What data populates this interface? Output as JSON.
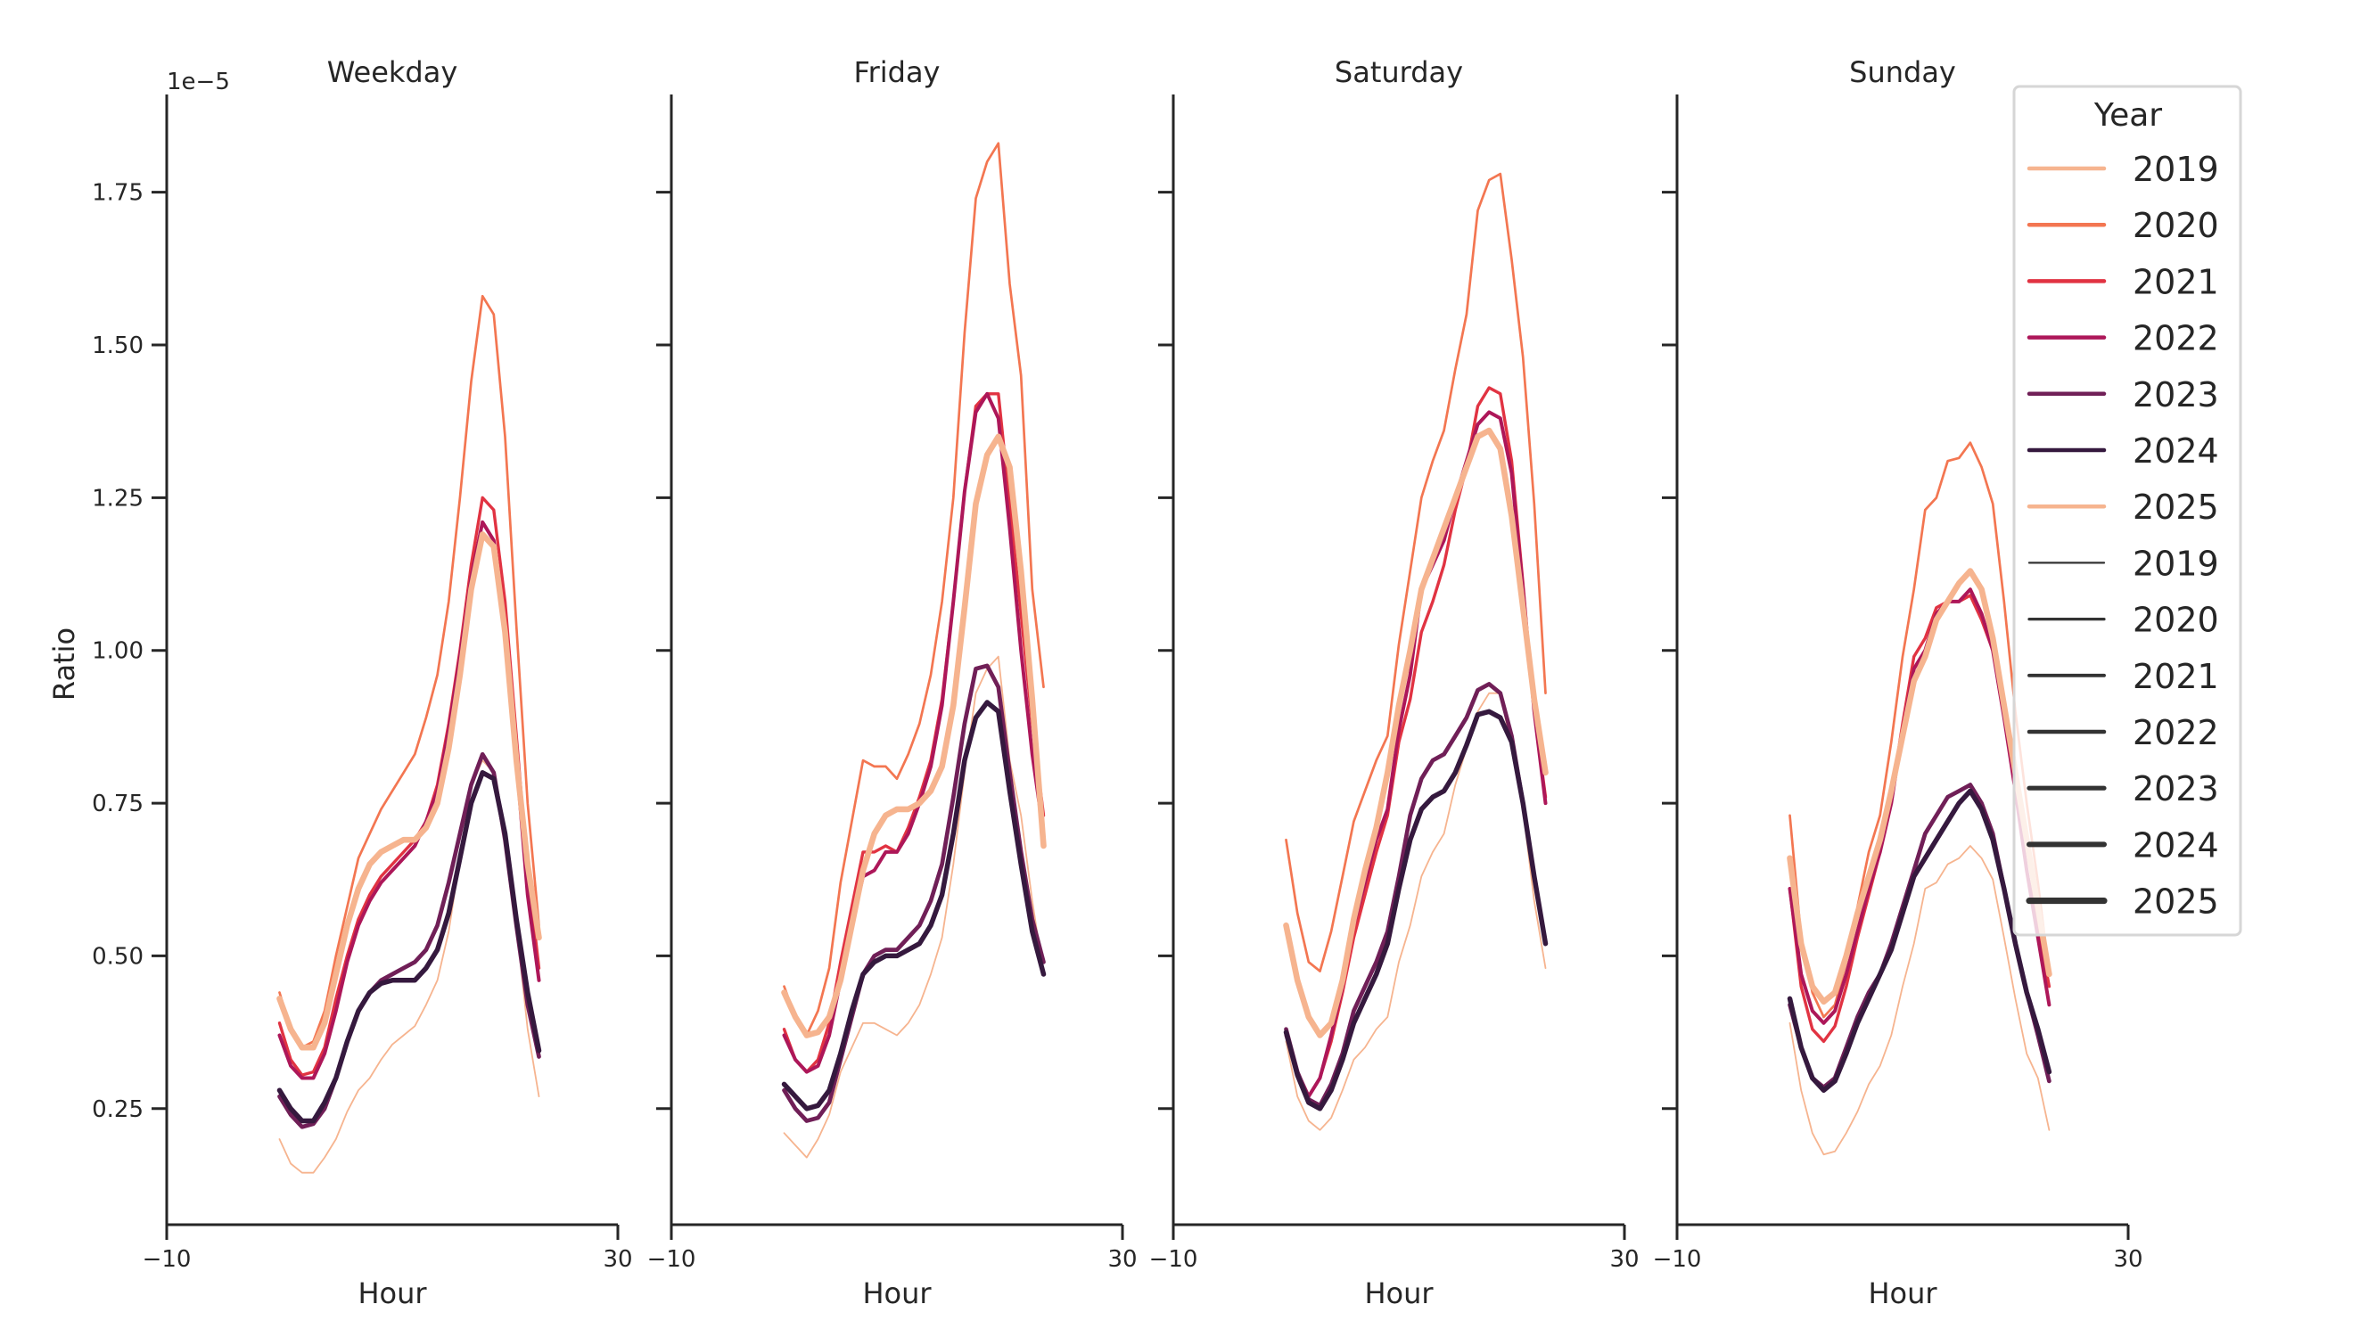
{
  "chart_data": {
    "type": "line",
    "offset_label": "1e−5",
    "ylabel": "Ratio",
    "xlabel": "Hour",
    "xlim": [
      -10,
      30
    ],
    "ylim": [
      0.06,
      1.91
    ],
    "x_ticks": [
      "−10",
      "30"
    ],
    "x_tick_values": [
      -10,
      30
    ],
    "y_ticks": [
      "0.25",
      "0.50",
      "0.75",
      "1.00",
      "1.25",
      "1.50",
      "1.75"
    ],
    "y_tick_values": [
      0.25,
      0.5,
      0.75,
      1.0,
      1.25,
      1.5,
      1.75
    ],
    "grid": false,
    "x": [
      0,
      1,
      2,
      3,
      4,
      5,
      6,
      7,
      8,
      9,
      10,
      11,
      12,
      13,
      14,
      15,
      16,
      17,
      18,
      19,
      20,
      21,
      22,
      23
    ],
    "legend": {
      "title": "Year",
      "placement": "top-right",
      "hue_entries": [
        "2019",
        "2020",
        "2021",
        "2022",
        "2023",
        "2024",
        "2025"
      ],
      "size_entries": [
        "2019",
        "2020",
        "2021",
        "2022",
        "2023",
        "2024",
        "2025"
      ]
    },
    "colors": {
      "2019": "#f6b48f",
      "2020": "#f37651",
      "2021": "#e13342",
      "2022": "#ad1759",
      "2023": "#701f57",
      "2024": "#35193e",
      "2025": "#f6b48f"
    },
    "panels": [
      {
        "title": "Weekday",
        "series": [
          {
            "name": "2019",
            "values": [
              0.2,
              0.16,
              0.145,
              0.145,
              0.17,
              0.2,
              0.245,
              0.28,
              0.3,
              0.33,
              0.355,
              0.37,
              0.385,
              0.42,
              0.46,
              0.54,
              0.66,
              0.78,
              0.82,
              0.8,
              0.7,
              0.55,
              0.38,
              0.27
            ]
          },
          {
            "name": "2020",
            "values": [
              0.44,
              0.38,
              0.35,
              0.36,
              0.41,
              0.5,
              0.58,
              0.66,
              0.7,
              0.74,
              0.77,
              0.8,
              0.83,
              0.89,
              0.96,
              1.08,
              1.25,
              1.44,
              1.58,
              1.55,
              1.35,
              1.04,
              0.75,
              0.55
            ]
          },
          {
            "name": "2021",
            "values": [
              0.39,
              0.33,
              0.305,
              0.31,
              0.35,
              0.43,
              0.5,
              0.56,
              0.6,
              0.63,
              0.65,
              0.67,
              0.69,
              0.72,
              0.78,
              0.88,
              1.0,
              1.14,
              1.25,
              1.23,
              1.08,
              0.86,
              0.64,
              0.48
            ]
          },
          {
            "name": "2022",
            "values": [
              0.37,
              0.32,
              0.3,
              0.3,
              0.34,
              0.41,
              0.49,
              0.55,
              0.59,
              0.62,
              0.64,
              0.66,
              0.68,
              0.72,
              0.77,
              0.87,
              0.99,
              1.12,
              1.21,
              1.18,
              1.04,
              0.82,
              0.6,
              0.46
            ]
          },
          {
            "name": "2023",
            "values": [
              0.27,
              0.24,
              0.22,
              0.225,
              0.25,
              0.3,
              0.36,
              0.41,
              0.44,
              0.46,
              0.47,
              0.48,
              0.49,
              0.51,
              0.55,
              0.62,
              0.7,
              0.78,
              0.83,
              0.8,
              0.69,
              0.55,
              0.42,
              0.335
            ]
          },
          {
            "name": "2024",
            "values": [
              0.28,
              0.25,
              0.23,
              0.23,
              0.26,
              0.3,
              0.36,
              0.41,
              0.44,
              0.455,
              0.46,
              0.46,
              0.46,
              0.48,
              0.51,
              0.57,
              0.66,
              0.75,
              0.8,
              0.79,
              0.7,
              0.56,
              0.44,
              0.345
            ]
          },
          {
            "name": "2025",
            "values": [
              0.43,
              0.38,
              0.35,
              0.35,
              0.39,
              0.47,
              0.55,
              0.61,
              0.65,
              0.67,
              0.68,
              0.69,
              0.69,
              0.71,
              0.75,
              0.84,
              0.96,
              1.1,
              1.19,
              1.17,
              1.03,
              0.82,
              0.65,
              0.53
            ]
          }
        ]
      },
      {
        "title": "Friday",
        "series": [
          {
            "name": "2019",
            "values": [
              0.21,
              0.19,
              0.17,
              0.2,
              0.24,
              0.31,
              0.35,
              0.39,
              0.39,
              0.38,
              0.37,
              0.39,
              0.42,
              0.47,
              0.53,
              0.65,
              0.8,
              0.93,
              0.97,
              0.99,
              0.82,
              0.73,
              0.59,
              0.47
            ]
          },
          {
            "name": "2020",
            "values": [
              0.45,
              0.4,
              0.37,
              0.41,
              0.48,
              0.62,
              0.72,
              0.82,
              0.81,
              0.81,
              0.79,
              0.83,
              0.88,
              0.96,
              1.08,
              1.25,
              1.52,
              1.74,
              1.8,
              1.83,
              1.6,
              1.45,
              1.1,
              0.94
            ]
          },
          {
            "name": "2021",
            "values": [
              0.38,
              0.33,
              0.31,
              0.33,
              0.39,
              0.49,
              0.58,
              0.67,
              0.67,
              0.68,
              0.67,
              0.71,
              0.76,
              0.82,
              0.92,
              1.08,
              1.26,
              1.4,
              1.42,
              1.42,
              1.24,
              1.06,
              0.88,
              0.73
            ]
          },
          {
            "name": "2022",
            "values": [
              0.37,
              0.33,
              0.31,
              0.32,
              0.37,
              0.46,
              0.55,
              0.63,
              0.64,
              0.67,
              0.67,
              0.7,
              0.75,
              0.81,
              0.91,
              1.08,
              1.26,
              1.39,
              1.42,
              1.38,
              1.2,
              1.0,
              0.83,
              0.7
            ]
          },
          {
            "name": "2023",
            "values": [
              0.28,
              0.25,
              0.23,
              0.235,
              0.26,
              0.33,
              0.4,
              0.47,
              0.5,
              0.51,
              0.51,
              0.53,
              0.55,
              0.59,
              0.65,
              0.76,
              0.88,
              0.97,
              0.975,
              0.94,
              0.8,
              0.67,
              0.56,
              0.49
            ]
          },
          {
            "name": "2024",
            "values": [
              0.29,
              0.27,
              0.25,
              0.255,
              0.28,
              0.34,
              0.41,
              0.47,
              0.49,
              0.5,
              0.5,
              0.51,
              0.52,
              0.55,
              0.6,
              0.7,
              0.82,
              0.89,
              0.915,
              0.9,
              0.77,
              0.65,
              0.54,
              0.47
            ]
          },
          {
            "name": "2025",
            "values": [
              0.44,
              0.4,
              0.37,
              0.375,
              0.4,
              0.46,
              0.55,
              0.64,
              0.7,
              0.73,
              0.74,
              0.74,
              0.75,
              0.77,
              0.81,
              0.91,
              1.07,
              1.24,
              1.32,
              1.35,
              1.3,
              1.13,
              0.92,
              0.68
            ]
          }
        ]
      },
      {
        "title": "Saturday",
        "series": [
          {
            "name": "2019",
            "values": [
              0.36,
              0.27,
              0.23,
              0.215,
              0.235,
              0.28,
              0.33,
              0.35,
              0.38,
              0.4,
              0.49,
              0.55,
              0.63,
              0.67,
              0.7,
              0.78,
              0.84,
              0.9,
              0.93,
              0.93,
              0.84,
              0.74,
              0.59,
              0.48
            ]
          },
          {
            "name": "2020",
            "values": [
              0.69,
              0.57,
              0.49,
              0.475,
              0.54,
              0.63,
              0.72,
              0.77,
              0.82,
              0.86,
              1.01,
              1.13,
              1.25,
              1.31,
              1.36,
              1.46,
              1.55,
              1.72,
              1.77,
              1.78,
              1.64,
              1.48,
              1.24,
              0.93
            ]
          },
          {
            "name": "2021",
            "values": [
              0.38,
              0.31,
              0.27,
              0.3,
              0.36,
              0.44,
              0.53,
              0.6,
              0.67,
              0.73,
              0.85,
              0.92,
              1.03,
              1.08,
              1.14,
              1.23,
              1.3,
              1.4,
              1.43,
              1.42,
              1.31,
              1.11,
              0.9,
              0.76
            ]
          },
          {
            "name": "2022",
            "values": [
              0.37,
              0.31,
              0.27,
              0.3,
              0.37,
              0.45,
              0.55,
              0.62,
              0.69,
              0.74,
              0.87,
              0.96,
              1.1,
              1.14,
              1.18,
              1.25,
              1.31,
              1.37,
              1.39,
              1.38,
              1.29,
              1.1,
              0.9,
              0.75
            ]
          },
          {
            "name": "2023",
            "values": [
              0.38,
              0.31,
              0.265,
              0.255,
              0.29,
              0.34,
              0.41,
              0.45,
              0.49,
              0.54,
              0.63,
              0.73,
              0.79,
              0.82,
              0.83,
              0.86,
              0.89,
              0.935,
              0.945,
              0.93,
              0.86,
              0.75,
              0.63,
              0.52
            ]
          },
          {
            "name": "2024",
            "values": [
              0.375,
              0.305,
              0.26,
              0.25,
              0.28,
              0.33,
              0.39,
              0.43,
              0.47,
              0.52,
              0.61,
              0.69,
              0.74,
              0.76,
              0.77,
              0.8,
              0.845,
              0.895,
              0.9,
              0.89,
              0.85,
              0.75,
              0.63,
              0.52
            ]
          },
          {
            "name": "2025",
            "values": [
              0.55,
              0.46,
              0.4,
              0.37,
              0.39,
              0.46,
              0.56,
              0.64,
              0.71,
              0.8,
              0.91,
              1.0,
              1.1,
              1.15,
              1.2,
              1.25,
              1.3,
              1.35,
              1.36,
              1.33,
              1.22,
              1.07,
              0.92,
              0.8
            ]
          }
        ]
      },
      {
        "title": "Sunday",
        "series": [
          {
            "name": "2019",
            "values": [
              0.39,
              0.28,
              0.21,
              0.175,
              0.18,
              0.21,
              0.245,
              0.29,
              0.32,
              0.37,
              0.45,
              0.52,
              0.61,
              0.62,
              0.65,
              0.66,
              0.68,
              0.66,
              0.625,
              0.53,
              0.43,
              0.34,
              0.3,
              0.215
            ]
          },
          {
            "name": "2020",
            "values": [
              0.73,
              0.53,
              0.44,
              0.4,
              0.42,
              0.49,
              0.58,
              0.67,
              0.73,
              0.85,
              0.99,
              1.1,
              1.23,
              1.25,
              1.31,
              1.315,
              1.34,
              1.3,
              1.24,
              1.08,
              0.9,
              0.75,
              0.62,
              0.47
            ]
          },
          {
            "name": "2021",
            "values": [
              0.61,
              0.45,
              0.38,
              0.36,
              0.385,
              0.45,
              0.53,
              0.6,
              0.67,
              0.76,
              0.88,
              0.99,
              1.02,
              1.07,
              1.08,
              1.08,
              1.09,
              1.05,
              1.0,
              0.9,
              0.78,
              0.64,
              0.55,
              0.45
            ]
          },
          {
            "name": "2022",
            "values": [
              0.61,
              0.47,
              0.41,
              0.39,
              0.41,
              0.47,
              0.54,
              0.61,
              0.67,
              0.75,
              0.87,
              0.97,
              1.0,
              1.06,
              1.08,
              1.08,
              1.1,
              1.06,
              1.0,
              0.89,
              0.77,
              0.64,
              0.53,
              0.42
            ]
          },
          {
            "name": "2023",
            "values": [
              0.42,
              0.35,
              0.3,
              0.285,
              0.3,
              0.35,
              0.4,
              0.44,
              0.47,
              0.52,
              0.58,
              0.64,
              0.7,
              0.73,
              0.76,
              0.77,
              0.78,
              0.75,
              0.7,
              0.61,
              0.52,
              0.44,
              0.37,
              0.295
            ]
          },
          {
            "name": "2024",
            "values": [
              0.43,
              0.35,
              0.3,
              0.28,
              0.295,
              0.34,
              0.39,
              0.43,
              0.47,
              0.51,
              0.57,
              0.63,
              0.66,
              0.69,
              0.72,
              0.75,
              0.77,
              0.74,
              0.69,
              0.61,
              0.52,
              0.44,
              0.38,
              0.31
            ]
          },
          {
            "name": "2025",
            "values": [
              0.66,
              0.52,
              0.45,
              0.425,
              0.44,
              0.5,
              0.57,
              0.63,
              0.69,
              0.77,
              0.86,
              0.95,
              0.99,
              1.05,
              1.08,
              1.11,
              1.13,
              1.1,
              1.02,
              0.91,
              0.8,
              0.69,
              0.58,
              0.47
            ]
          }
        ]
      }
    ]
  }
}
